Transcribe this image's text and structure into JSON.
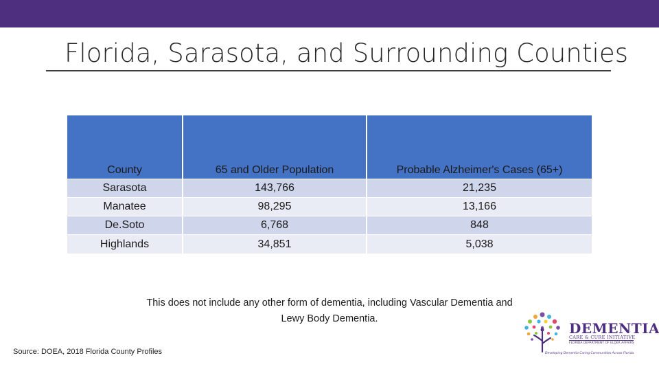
{
  "slide": {
    "title": "Florida, Sarasota, and Surrounding Counties"
  },
  "table": {
    "headers": [
      "County",
      "65 and Older Population",
      "Probable Alzheimer's Cases (65+)"
    ],
    "rows": [
      [
        "Sarasota",
        "143,766",
        "21,235"
      ],
      [
        "Manatee",
        "98,295",
        "13,166"
      ],
      [
        "De.Soto",
        "6,768",
        "848"
      ],
      [
        "Highlands",
        "34,851",
        "5,038"
      ]
    ]
  },
  "note": "This does not include any other form of dementia, including Vascular Dementia and Lewy Body Dementia.",
  "source": "Source: DOEA, 2018 Florida County Profiles",
  "logo": {
    "name": "DEMENTIA",
    "subtitle": "CARE & CURE INITIATIVE",
    "department": "FLORIDA DEPARTMENT OF ELDER AFFAIRS",
    "tagline": "Developing Dementia Caring Communities Across Florida"
  },
  "colors": {
    "top_bar": "#4e2f7f",
    "header_fill": "#4472c4",
    "row_fill_a": "#cfd5ea",
    "row_fill_b": "#e9ebf5"
  }
}
